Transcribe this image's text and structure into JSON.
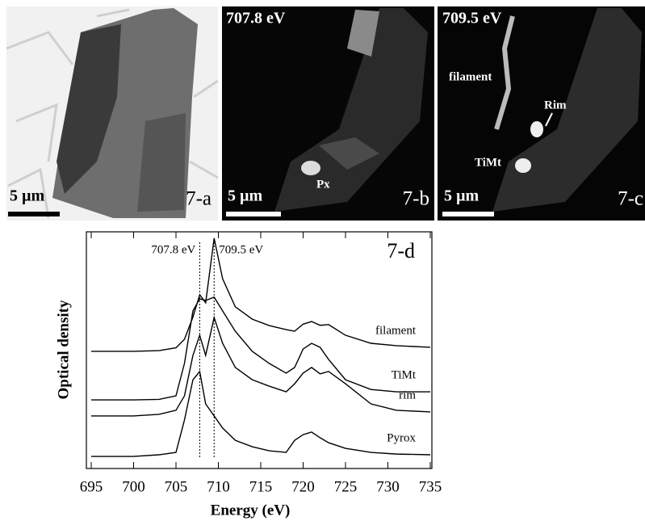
{
  "panels": [
    {
      "label": "7-a",
      "scale_bar": "5 µm"
    },
    {
      "label": "7-b",
      "scale_bar": "5 µm",
      "energy": "707.8 eV",
      "annotations": [
        "Px"
      ]
    },
    {
      "label": "7-c",
      "scale_bar": "5 µm",
      "energy": "709.5 eV",
      "annotations": [
        "filament",
        "Rim",
        "TiMt"
      ]
    }
  ],
  "chart_data": {
    "type": "line",
    "annotation": "7-d",
    "xlabel": "Energy (eV)",
    "ylabel": "Optical density",
    "x": [
      695,
      700,
      703,
      705,
      706,
      707,
      707.8,
      708.5,
      709.5,
      710.5,
      712,
      714,
      716,
      718,
      719,
      720,
      721,
      722,
      723,
      725,
      728,
      731,
      735
    ],
    "series": [
      {
        "name": "filament",
        "color": "#000000",
        "values": [
          49.5,
          49.5,
          49.8,
          51,
          54.6,
          64,
          73.4,
          70,
          97.3,
          80.2,
          68.3,
          63.1,
          60.4,
          58.7,
          58,
          61,
          62.1,
          60.5,
          60.8,
          56.3,
          52.9,
          51.9,
          51.2
        ]
      },
      {
        "name": "TiMt",
        "color": "#000000",
        "values": [
          29,
          29,
          29.2,
          30.7,
          44.4,
          66.6,
          71.7,
          71,
          72.4,
          66.6,
          58,
          49.5,
          44.4,
          40.3,
          42.7,
          50.5,
          52.9,
          51.2,
          46.1,
          37.5,
          33.4,
          32.4,
          32.4
        ]
      },
      {
        "name": "rim",
        "color": "#000000",
        "values": [
          22.2,
          22.2,
          22.9,
          24.6,
          30.7,
          47.8,
          56.3,
          47.8,
          63.8,
          52.9,
          42.7,
          37.5,
          34.8,
          32.4,
          35.8,
          40.3,
          42.7,
          40,
          41,
          35.8,
          27.3,
          24.6,
          23.9
        ]
      },
      {
        "name": "Pyrox",
        "color": "#000000",
        "values": [
          5.1,
          5.1,
          5.8,
          6.8,
          20.5,
          37.5,
          41,
          27.3,
          22.2,
          17.1,
          11.9,
          9.2,
          7.5,
          6.8,
          11.9,
          14.3,
          15.4,
          13,
          10.9,
          8.5,
          6.8,
          6.1,
          5.8
        ]
      }
    ],
    "xlim": [
      695,
      735
    ],
    "xticks": [
      695,
      700,
      705,
      710,
      715,
      720,
      725,
      730,
      735
    ],
    "ylim": [
      0,
      100
    ],
    "reference_lines": [
      {
        "x": 707.8,
        "label": "707.8 eV"
      },
      {
        "x": 709.5,
        "label": "709.5 eV"
      }
    ]
  }
}
